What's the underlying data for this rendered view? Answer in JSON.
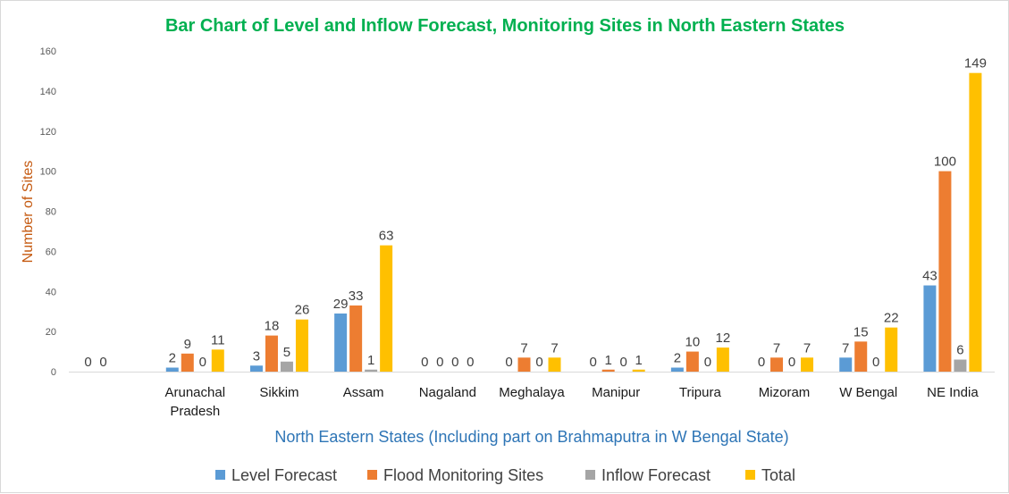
{
  "chart_data": {
    "type": "bar",
    "title": "Bar Chart of Level and Inflow Forecast, Monitoring Sites in North Eastern States",
    "xlabel": "North Eastern States (Including part on Brahmaputra in W Bengal State)",
    "ylabel": "Number of Sites",
    "ylim": [
      0,
      160
    ],
    "yticks": [
      0,
      20,
      40,
      60,
      80,
      100,
      120,
      140,
      160
    ],
    "grid": false,
    "legend_position": "bottom",
    "categories": [
      "",
      [
        "Arunachal",
        "Pradesh"
      ],
      [
        "Sikkim"
      ],
      [
        "Assam"
      ],
      [
        "Nagaland"
      ],
      [
        "Meghalaya"
      ],
      [
        "Manipur"
      ],
      [
        "Tripura"
      ],
      [
        "Mizoram"
      ],
      [
        "W Bengal"
      ],
      [
        "NE India"
      ]
    ],
    "series": [
      {
        "name": "Level Forecast",
        "color": "#5b9bd5",
        "values": [
          0,
          2,
          3,
          29,
          0,
          0,
          0,
          2,
          0,
          7,
          43
        ]
      },
      {
        "name": "Flood Monitoring Sites",
        "color": "#ed7d31",
        "values": [
          0,
          9,
          18,
          33,
          0,
          7,
          1,
          10,
          7,
          15,
          100
        ]
      },
      {
        "name": "Inflow Forecast",
        "color": "#a5a5a5",
        "values": [
          null,
          0,
          5,
          1,
          0,
          0,
          0,
          0,
          0,
          0,
          6
        ]
      },
      {
        "name": "Total",
        "color": "#ffc000",
        "values": [
          null,
          11,
          26,
          63,
          0,
          7,
          1,
          12,
          7,
          22,
          149
        ]
      }
    ],
    "title_color": "#00b050",
    "xlabel_color": "#2e75b6",
    "ylabel_color": "#c55a11"
  }
}
